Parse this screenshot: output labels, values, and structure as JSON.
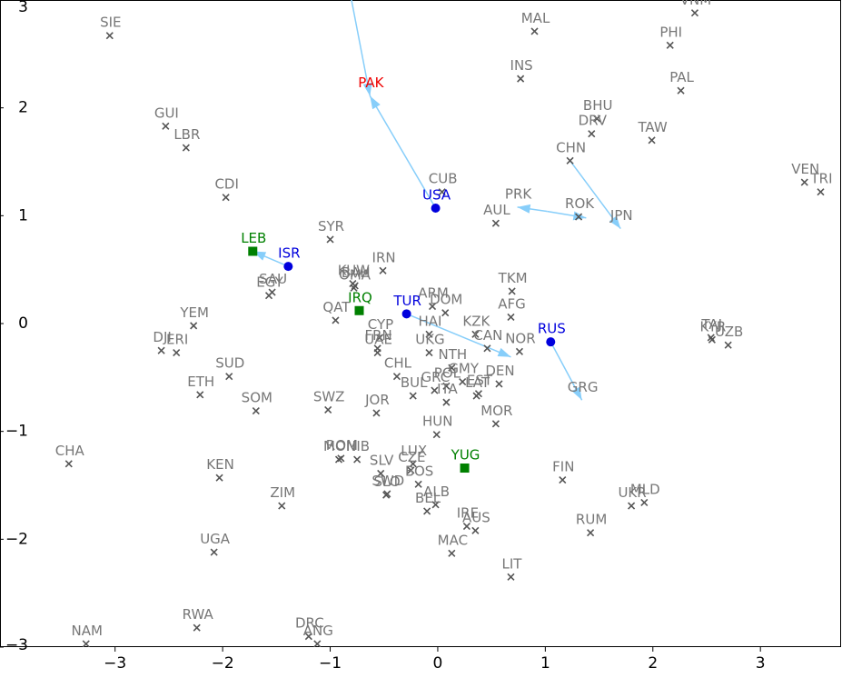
{
  "chart_data": {
    "type": "scatter",
    "xlim": [
      -4.07,
      3.75
    ],
    "ylim": [
      -3,
      3
    ],
    "xticks": [
      {
        "value": -3,
        "label": "−3"
      },
      {
        "value": -2,
        "label": "−2"
      },
      {
        "value": -1,
        "label": "−1"
      },
      0,
      1,
      2,
      3
    ],
    "yticks": [
      {
        "value": -3,
        "label": "−3"
      },
      {
        "value": -2,
        "label": "−2"
      },
      {
        "value": -1,
        "label": "−1"
      },
      0,
      1,
      2,
      3
    ],
    "arrow_color": "#87cefa",
    "groups": [
      {
        "marker": "x",
        "color": "#555555",
        "label_color": "#777777",
        "labels": [
          "SIE",
          "MAL",
          "VNM",
          "PHI",
          "INS",
          "PAL",
          "GUI",
          "LBR",
          "BHU",
          "DRV",
          "TAW",
          "CHN",
          "CDI",
          "VEN",
          "TRI",
          "CUB",
          "AUL",
          "ROK",
          "SYR",
          "IRN",
          "KUW",
          "OMA",
          "BAH",
          "SAU",
          "EGY",
          "TKM",
          "QAT",
          "ARM",
          "DOM",
          "AFG",
          "YEM",
          "CYP",
          "DJI",
          "ERI",
          "FRN",
          "UAE",
          "HAI",
          "KZK",
          "CAN",
          "NOR",
          "TAJ",
          "KYR",
          "UZB",
          "UKG",
          "SUD",
          "NTH",
          "CHL",
          "GMY",
          "POL",
          "GRC",
          "DEN",
          "EST",
          "LAT",
          "BUL",
          "ITA",
          "ETH",
          "SOM",
          "SWZ",
          "JOR",
          "MOR",
          "HUN",
          "CHA",
          "MON",
          "ROM",
          "NIB",
          "KEN",
          "LUX",
          "CZE",
          "SLV",
          "SLO",
          "SWD",
          "BOS",
          "FIN",
          "ZIM",
          "ALB",
          "BEL",
          "UKR",
          "MLD",
          "IRE",
          "AUS",
          "RUM",
          "MAC",
          "UGA",
          "LIT",
          "RWA",
          "NAM",
          "DRC",
          "ANG"
        ],
        "x": [
          -3.05,
          0.9,
          2.39,
          2.16,
          0.77,
          2.26,
          -2.53,
          -2.34,
          1.48,
          1.43,
          1.99,
          1.23,
          -1.97,
          3.41,
          3.56,
          0.04,
          0.54,
          1.31,
          -1.0,
          -0.51,
          -0.79,
          -0.78,
          -0.77,
          -1.54,
          -1.57,
          0.69,
          -0.95,
          -0.05,
          0.07,
          0.68,
          -2.27,
          -0.54,
          -2.57,
          -2.43,
          -0.56,
          -0.56,
          -0.08,
          0.35,
          0.46,
          0.76,
          2.54,
          2.55,
          2.7,
          -0.08,
          -1.94,
          0.13,
          -0.38,
          0.23,
          0.08,
          -0.03,
          0.57,
          0.38,
          0.36,
          -0.23,
          0.08,
          -2.21,
          -1.69,
          -1.02,
          -0.57,
          0.54,
          -0.01,
          -3.43,
          -0.92,
          -0.9,
          -0.75,
          -2.03,
          -0.23,
          -0.25,
          -0.53,
          -0.48,
          -0.47,
          -0.18,
          1.16,
          -1.45,
          -0.02,
          -0.1,
          1.8,
          1.92,
          0.27,
          0.35,
          1.42,
          0.13,
          -2.08,
          0.68,
          -2.24,
          -3.27,
          -1.2,
          -1.12
        ],
        "y": [
          2.67,
          2.71,
          2.88,
          2.58,
          2.27,
          2.16,
          1.83,
          1.63,
          1.9,
          1.76,
          1.7,
          1.51,
          1.17,
          1.31,
          1.22,
          1.22,
          0.93,
          0.99,
          0.78,
          0.49,
          0.37,
          0.33,
          0.35,
          0.29,
          0.26,
          0.3,
          0.03,
          0.16,
          0.1,
          0.06,
          -0.02,
          -0.13,
          -0.25,
          -0.27,
          -0.23,
          -0.27,
          -0.1,
          -0.1,
          -0.23,
          -0.26,
          -0.13,
          -0.15,
          -0.2,
          -0.27,
          -0.49,
          -0.41,
          -0.49,
          -0.54,
          -0.58,
          -0.62,
          -0.56,
          -0.65,
          -0.67,
          -0.67,
          -0.73,
          -0.66,
          -0.81,
          -0.8,
          -0.83,
          -0.93,
          -1.03,
          -1.3,
          -1.26,
          -1.25,
          -1.26,
          -1.43,
          -1.3,
          -1.36,
          -1.39,
          -1.59,
          -1.58,
          -1.49,
          -1.45,
          -1.69,
          -1.68,
          -1.74,
          -1.69,
          -1.66,
          -1.88,
          -1.92,
          -1.94,
          -2.13,
          -2.12,
          -2.35,
          -2.82,
          -2.97,
          -2.9,
          -2.97
        ]
      },
      {
        "marker": "none",
        "color": "#777777",
        "label_color": "#777777",
        "labels": [
          "PRK",
          "JPN",
          "GRG"
        ],
        "x": [
          0.74,
          1.7,
          1.34
        ],
        "y": [
          1.08,
          0.88,
          -0.71
        ]
      },
      {
        "marker": "circle",
        "color": "#0000dd",
        "label_color": "#0000dd",
        "labels": [
          "USA",
          "ISR",
          "TUR",
          "RUS"
        ],
        "x": [
          -0.02,
          -1.39,
          -0.29,
          1.05
        ],
        "y": [
          1.07,
          0.53,
          0.09,
          -0.17
        ]
      },
      {
        "marker": "none",
        "color": "#ee0000",
        "label_color": "#ee0000",
        "labels": [
          "PAK"
        ],
        "x": [
          -0.63
        ],
        "y": [
          2.11
        ]
      },
      {
        "marker": "square",
        "color": "#008000",
        "label_color": "#008000",
        "labels": [
          "LEB",
          "IRQ",
          "YUG"
        ],
        "x": [
          -1.72,
          -0.73,
          0.25
        ],
        "y": [
          0.67,
          0.12,
          -1.34
        ]
      }
    ],
    "arrows": [
      {
        "from": [
          -0.86,
          3.3
        ],
        "to": [
          -0.63,
          2.11
        ]
      },
      {
        "from": [
          -0.02,
          1.07
        ],
        "to": [
          -0.63,
          2.11
        ]
      },
      {
        "from": [
          -1.39,
          0.53
        ],
        "to": [
          -1.72,
          0.67
        ]
      },
      {
        "from": [
          1.23,
          1.51
        ],
        "to": [
          1.7,
          0.88
        ]
      },
      {
        "from": [
          1.02,
          1.04
        ],
        "to": [
          0.74,
          1.08
        ]
      },
      {
        "from": [
          1.02,
          1.04
        ],
        "to": [
          1.38,
          0.98
        ]
      },
      {
        "from": [
          -0.29,
          0.09
        ],
        "to": [
          0.68,
          -0.31
        ]
      },
      {
        "from": [
          1.05,
          -0.17
        ],
        "to": [
          1.34,
          -0.71
        ]
      }
    ]
  }
}
